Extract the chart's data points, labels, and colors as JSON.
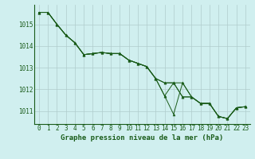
{
  "title": "Graphe pression niveau de la mer (hPa)",
  "background_color": "#d0efef",
  "grid_color": "#b0cccc",
  "line_color": "#1a5c1a",
  "marker_color": "#1a5c1a",
  "xlim": [
    -0.5,
    23.5
  ],
  "ylim": [
    1010.4,
    1015.9
  ],
  "yticks": [
    1011,
    1012,
    1013,
    1014,
    1015
  ],
  "xticks": [
    0,
    1,
    2,
    3,
    4,
    5,
    6,
    7,
    8,
    9,
    10,
    11,
    12,
    13,
    14,
    15,
    16,
    17,
    18,
    19,
    20,
    21,
    22,
    23
  ],
  "series": [
    [
      1015.55,
      1015.55,
      1015.0,
      1014.5,
      1014.15,
      1013.6,
      1013.65,
      1013.7,
      1013.65,
      1013.65,
      1013.35,
      1013.2,
      1013.05,
      1012.5,
      1011.7,
      1010.85,
      1012.3,
      1011.65,
      1011.35,
      1011.35,
      1010.75,
      1010.65,
      1011.15,
      1011.2
    ],
    [
      1015.55,
      1015.55,
      1015.0,
      1014.5,
      1014.15,
      1013.6,
      1013.65,
      1013.7,
      1013.65,
      1013.65,
      1013.35,
      1013.2,
      1013.05,
      1012.5,
      1011.7,
      1012.3,
      1012.3,
      1011.65,
      1011.35,
      1011.35,
      1010.75,
      1010.65,
      1011.15,
      1011.2
    ],
    [
      1015.55,
      1015.55,
      1015.0,
      1014.5,
      1014.15,
      1013.6,
      1013.65,
      1013.7,
      1013.65,
      1013.65,
      1013.35,
      1013.2,
      1013.05,
      1012.5,
      1012.3,
      1012.3,
      1011.65,
      1011.65,
      1011.35,
      1011.35,
      1010.75,
      1010.65,
      1011.15,
      1011.2
    ],
    [
      1015.55,
      1015.55,
      1015.0,
      1014.5,
      1014.15,
      1013.6,
      1013.65,
      1013.7,
      1013.65,
      1013.65,
      1013.35,
      1013.2,
      1013.05,
      1012.5,
      1012.3,
      1012.3,
      1011.65,
      1011.65,
      1011.35,
      1011.35,
      1010.75,
      1010.65,
      1011.15,
      1011.2
    ]
  ],
  "spine_color": "#1a5c1a",
  "tick_fontsize": 5.5,
  "label_fontsize": 6.5
}
